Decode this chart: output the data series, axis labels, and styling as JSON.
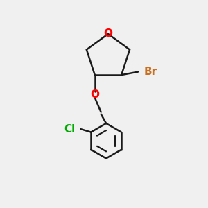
{
  "background_color": "#f0f0f0",
  "bond_color": "#1a1a1a",
  "oxygen_color": "#ff0000",
  "bromine_color": "#c87020",
  "chlorine_color": "#00aa00",
  "carbon_color": "#1a1a1a",
  "line_width": 1.8,
  "ring_oxygen_label": "O",
  "ether_oxygen_label": "O",
  "bromine_label": "Br",
  "chlorine_label": "Cl",
  "figsize": [
    3.0,
    3.0
  ],
  "dpi": 100
}
